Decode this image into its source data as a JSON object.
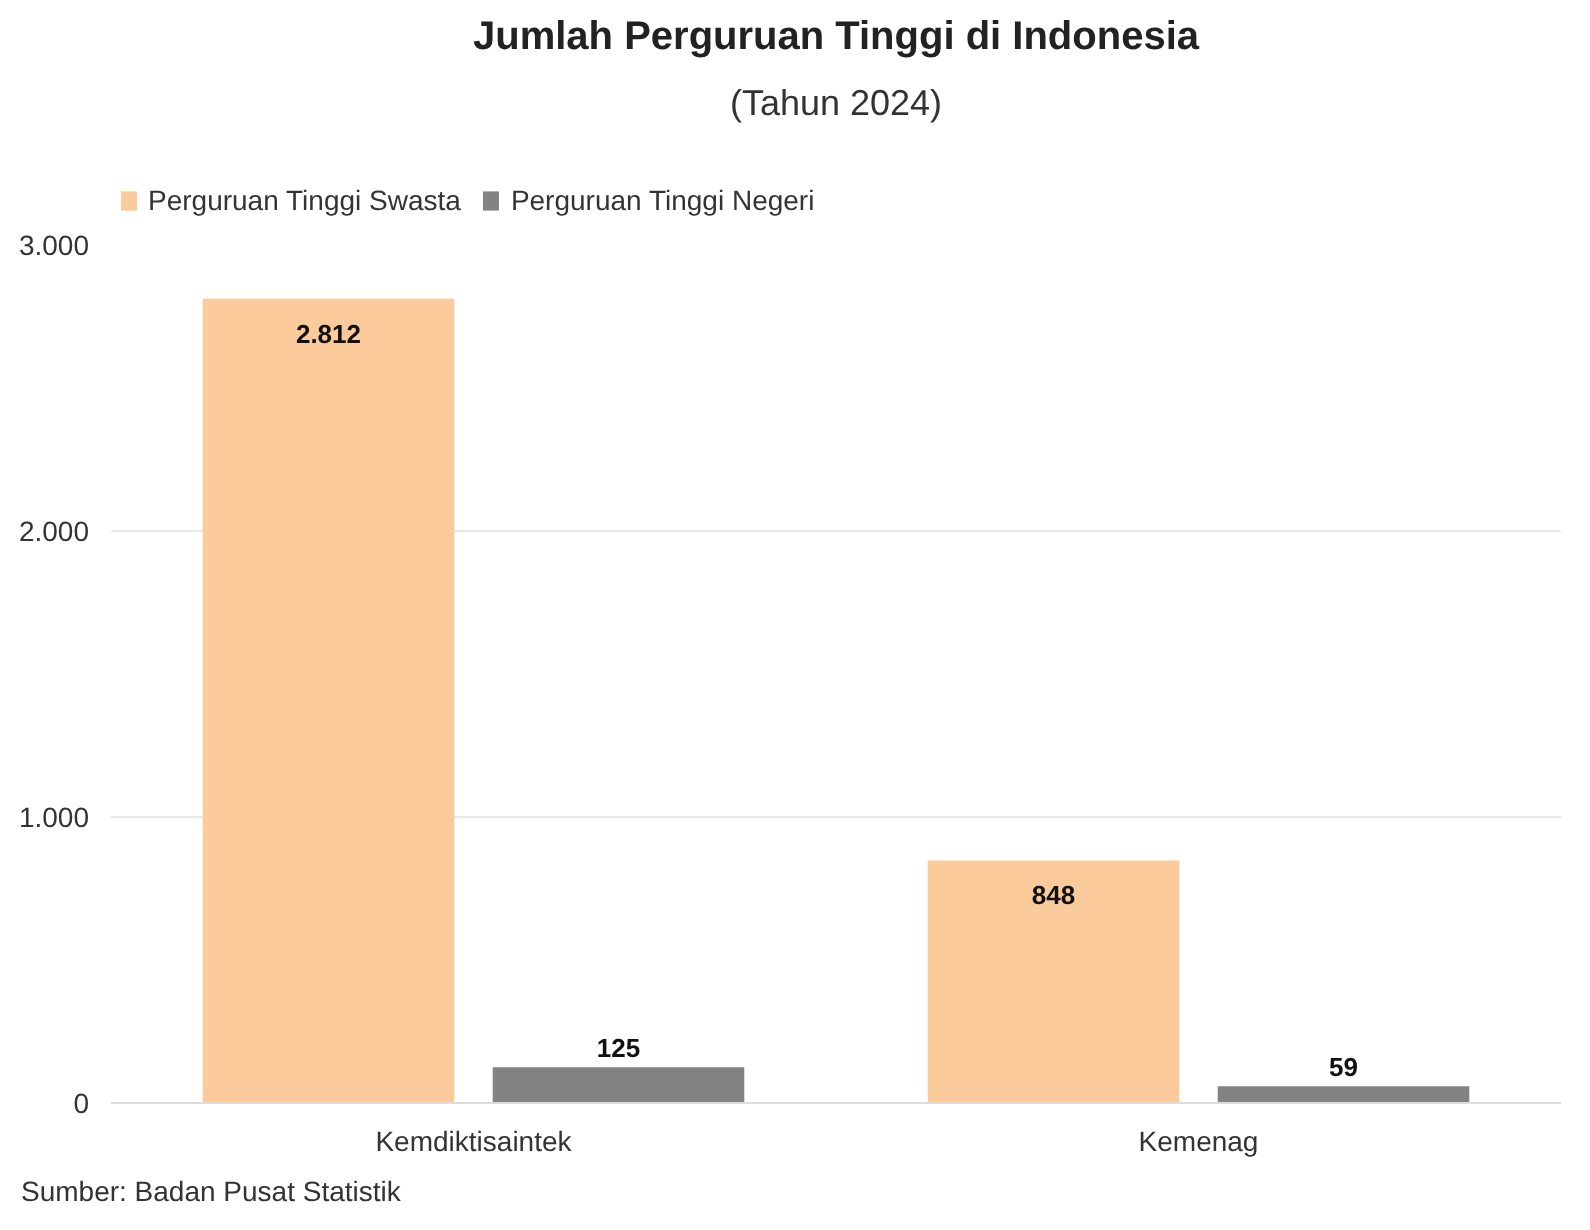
{
  "chart_data": {
    "type": "bar",
    "title": "Jumlah Perguruan Tinggi di Indonesia",
    "subtitle": "(Tahun 2024)",
    "categories": [
      "Kemdiktisaintek",
      "Kemenag"
    ],
    "series": [
      {
        "name": "Perguruan Tinggi Swasta",
        "color": "#fbcb9b",
        "values": [
          2812,
          848
        ],
        "value_labels": [
          "2.812",
          "848"
        ]
      },
      {
        "name": "Perguruan Tinggi Negeri",
        "color": "#838383",
        "values": [
          125,
          59
        ],
        "value_labels": [
          "125",
          "59"
        ]
      }
    ],
    "ylim": [
      0,
      3000
    ],
    "yticks": [
      0,
      {
        "value": 1000,
        "label": "1.000"
      },
      {
        "value": 2000,
        "label": "2.000"
      },
      {
        "value": 3000,
        "label": "3.000"
      }
    ],
    "grid": "y",
    "legend": "top left",
    "annotations": [
      "Sumber: Badan Pusat Statistik"
    ]
  }
}
